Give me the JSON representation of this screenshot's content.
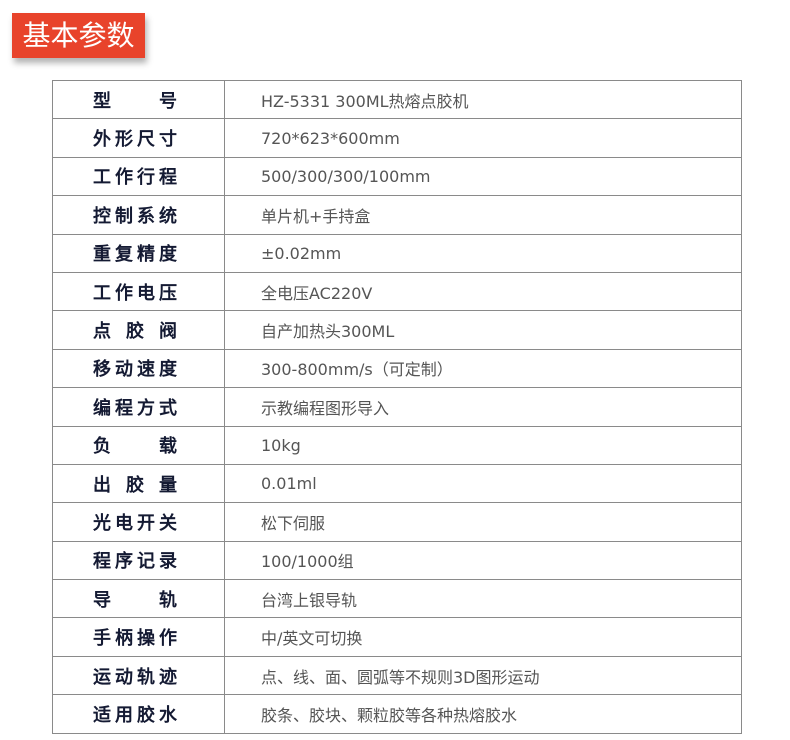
{
  "header": {
    "title": "基本参数",
    "color": "#e8432b"
  },
  "specs": [
    {
      "label": "型 号",
      "value": "HZ-5331 300ML热熔点胶机"
    },
    {
      "label": "外形尺寸",
      "value": "720*623*600mm"
    },
    {
      "label": "工作行程",
      "value": "500/300/300/100mm"
    },
    {
      "label": "控制系统",
      "value": "单片机+手持盒"
    },
    {
      "label": "重复精度",
      "value": "±0.02mm"
    },
    {
      "label": "工作电压",
      "value": "全电压AC220V"
    },
    {
      "label": "点 胶 阀",
      "value": "自产加热头300ML"
    },
    {
      "label": "移动速度",
      "value": "300-800mm/s（可定制）"
    },
    {
      "label": "编程方式",
      "value": "示教编程图形导入"
    },
    {
      "label": "负 载",
      "value": "10kg"
    },
    {
      "label": "出 胶 量",
      "value": "0.01ml"
    },
    {
      "label": "光电开关",
      "value": "松下伺服"
    },
    {
      "label": "程序记录",
      "value": "100/1000组"
    },
    {
      "label": "导 轨",
      "value": "台湾上银导轨"
    },
    {
      "label": "手柄操作",
      "value": "中/英文可切换"
    },
    {
      "label": "运动轨迹",
      "value": "点、线、面、圆弧等不规则3D图形运动"
    },
    {
      "label": "适用胶水",
      "value": "胶条、胶块、颗粒胶等各种热熔胶水"
    }
  ]
}
